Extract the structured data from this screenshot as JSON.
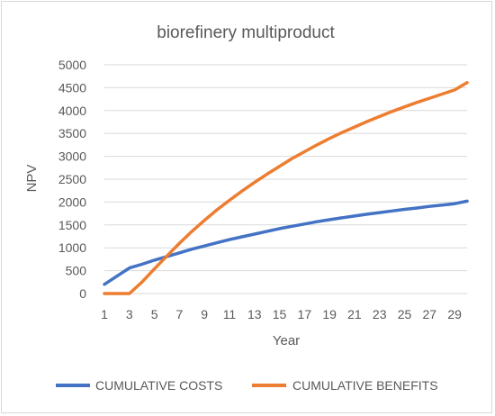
{
  "chart_data": {
    "type": "line",
    "title": "biorefinery multiproduct",
    "xlabel": "Year",
    "ylabel": "NPV",
    "ylim": [
      0,
      5000
    ],
    "y_ticks": [
      0,
      500,
      1000,
      1500,
      2000,
      2500,
      3000,
      3500,
      4000,
      4500,
      5000
    ],
    "x_tick_labels": [
      "1",
      "3",
      "5",
      "7",
      "9",
      "11",
      "13",
      "15",
      "17",
      "19",
      "21",
      "23",
      "25",
      "27",
      "29"
    ],
    "x": [
      1,
      2,
      3,
      4,
      5,
      6,
      7,
      8,
      9,
      10,
      11,
      12,
      13,
      14,
      15,
      16,
      17,
      18,
      19,
      20,
      21,
      22,
      23,
      24,
      25,
      26,
      27,
      28,
      29,
      30
    ],
    "grid": "horizontal",
    "legend_position": "bottom",
    "series": [
      {
        "name": "CUMULATIVE COSTS",
        "color": "#4472c4",
        "values": [
          200,
          380,
          560,
          640,
          730,
          810,
          890,
          970,
          1040,
          1110,
          1180,
          1240,
          1300,
          1360,
          1420,
          1470,
          1520,
          1570,
          1615,
          1655,
          1695,
          1735,
          1770,
          1805,
          1840,
          1870,
          1905,
          1935,
          1965,
          2020
        ]
      },
      {
        "name": "CUMULATIVE BENEFITS",
        "color": "#ed7d31",
        "values": [
          0,
          0,
          0,
          250,
          540,
          820,
          1100,
          1360,
          1600,
          1830,
          2040,
          2240,
          2430,
          2610,
          2780,
          2950,
          3100,
          3250,
          3390,
          3520,
          3640,
          3760,
          3870,
          3980,
          4080,
          4180,
          4270,
          4360,
          4450,
          4610
        ]
      }
    ]
  }
}
